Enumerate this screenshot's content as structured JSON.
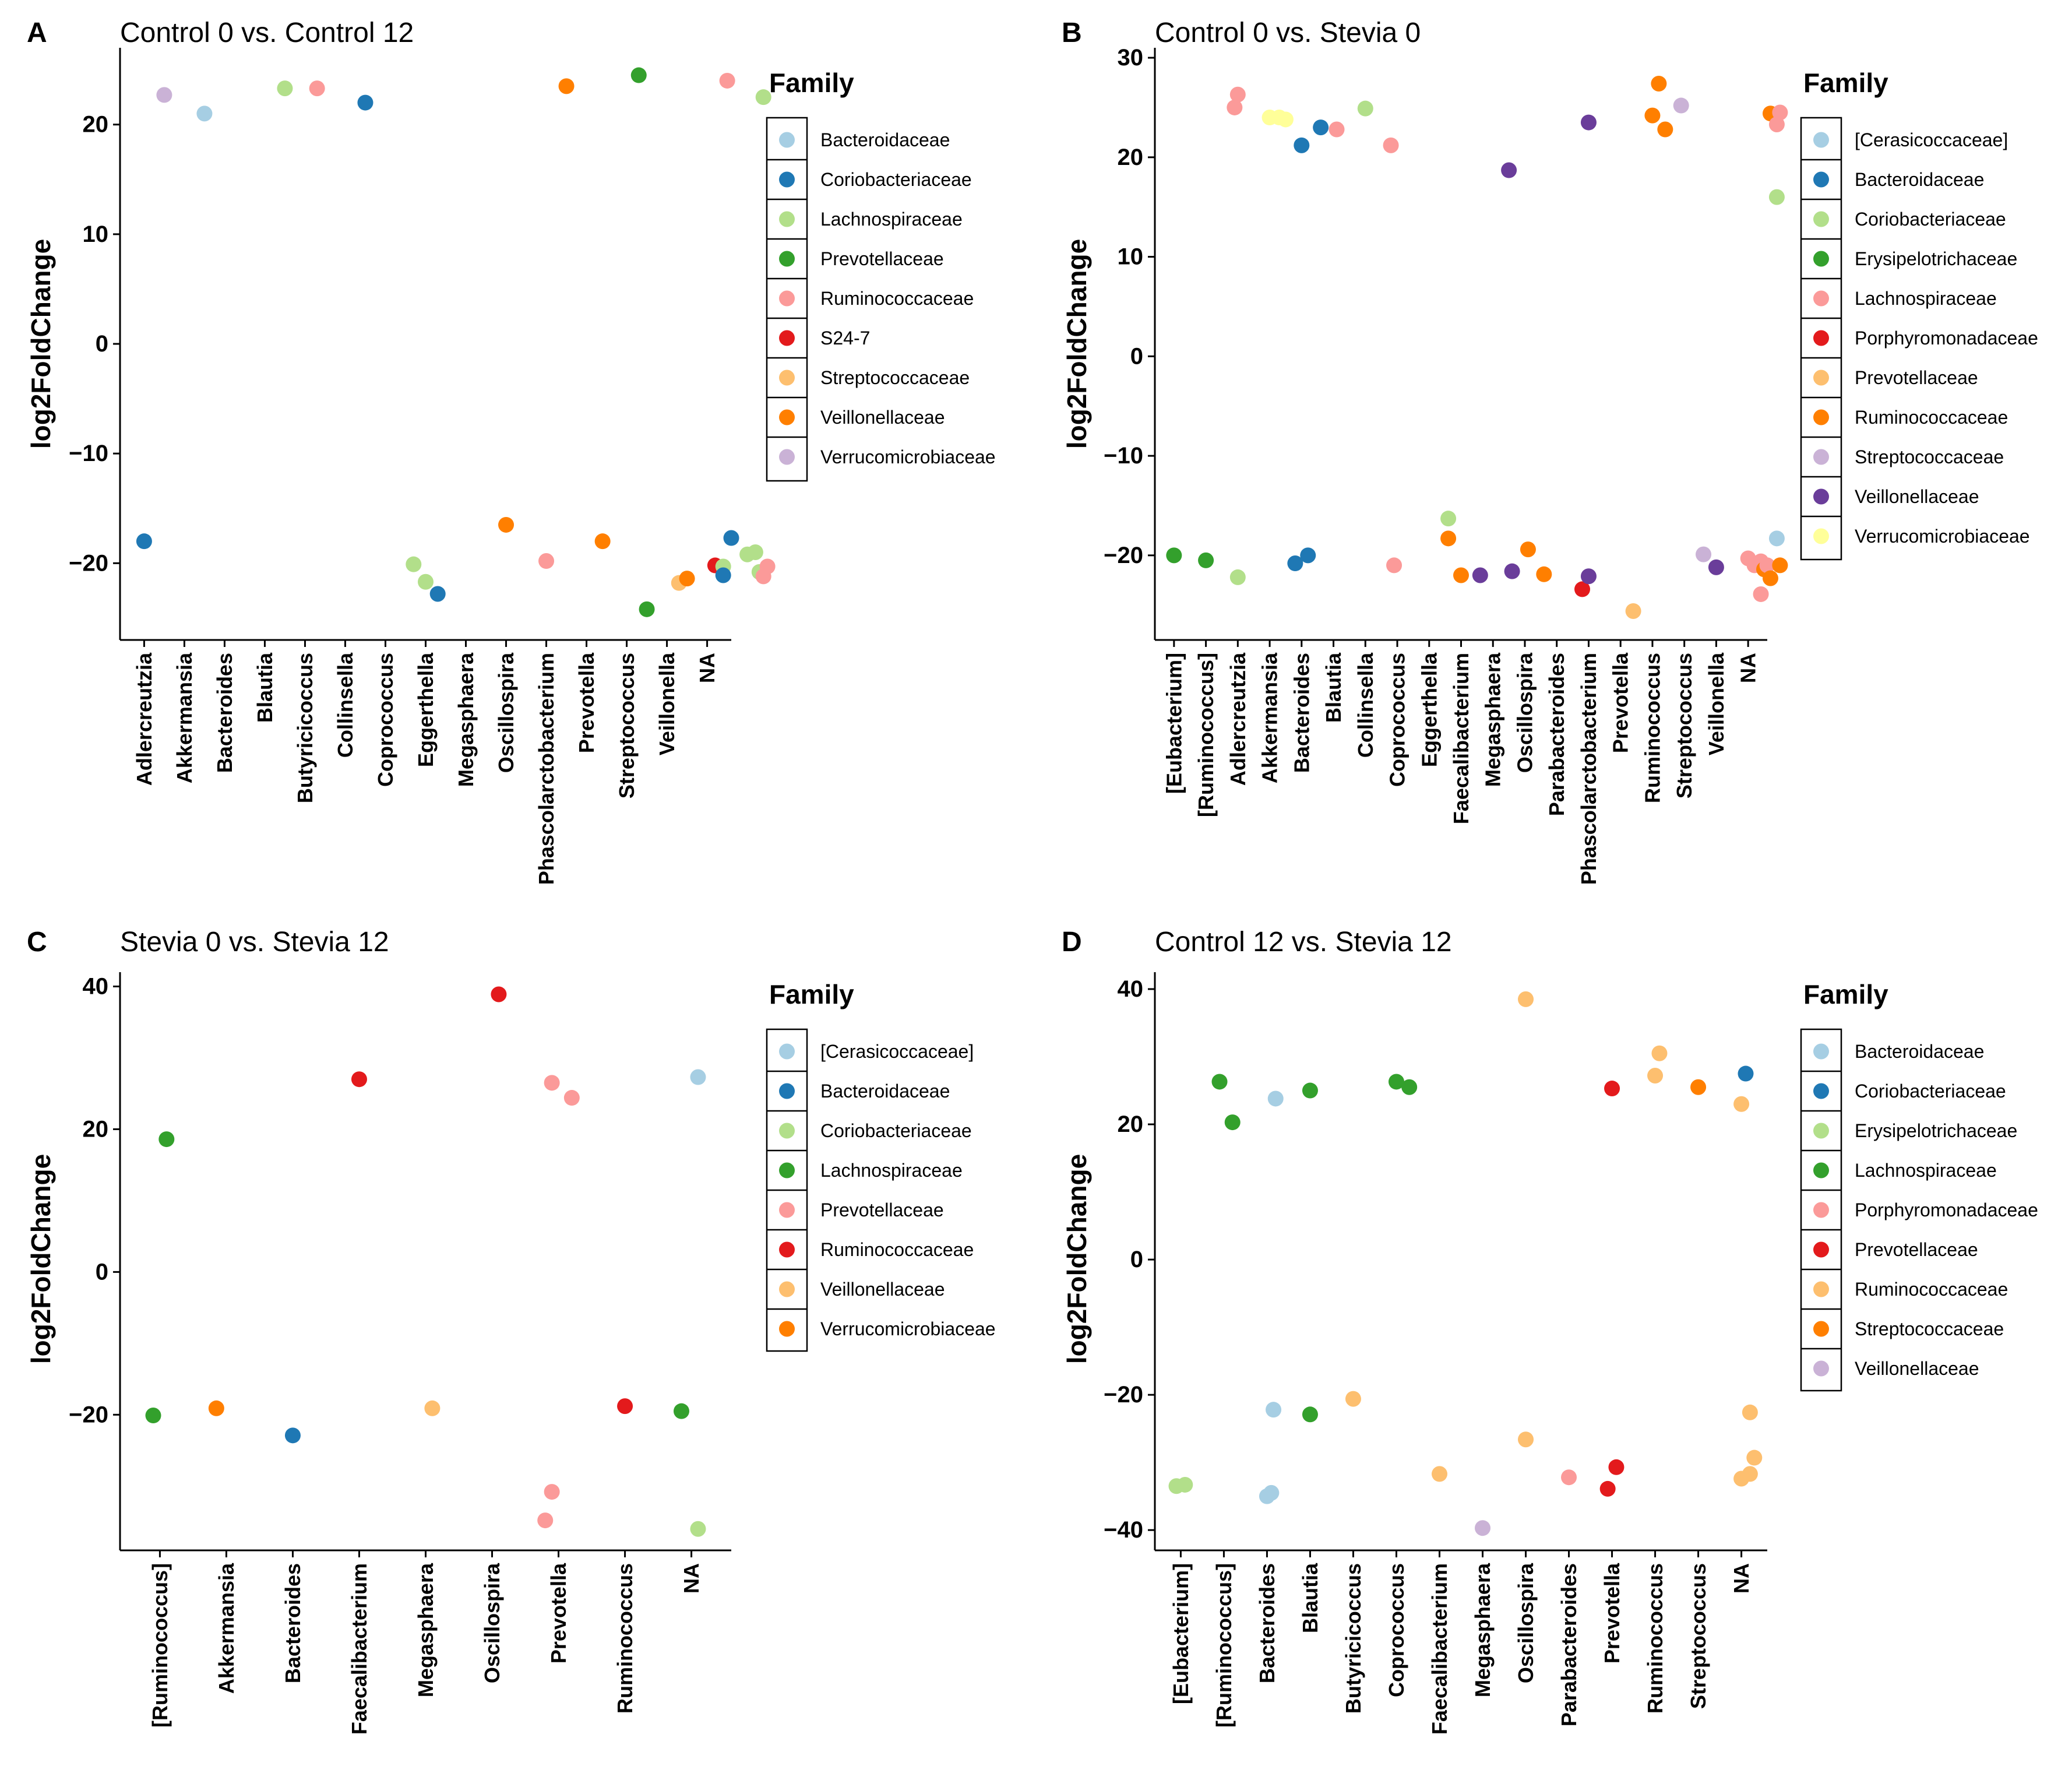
{
  "legend_title": "Family",
  "chart_data": [
    {
      "panel": "A",
      "type": "scatter",
      "title": "Control 0 vs. Control 12",
      "ylabel": "log2FoldChange",
      "xlabel": "",
      "ylim": [
        -27,
        27
      ],
      "yticks": [
        -20,
        -10,
        0,
        10,
        20
      ],
      "ytick_labels": [
        "−20",
        "−10",
        "0",
        "10",
        "20"
      ],
      "categories": [
        "Adlercreutzia",
        "Akkermansia",
        "Bacteroides",
        "Blautia",
        "Butyricicoccus",
        "Collinsella",
        "Coprococcus",
        "Eggerthella",
        "Megasphaera",
        "Oscillospira",
        "Phascolarctobacterium",
        "Prevotella",
        "Streptococcus",
        "Veillonella",
        "NA"
      ],
      "families": [
        {
          "name": "Bacteroidaceae",
          "color": "#a6cee3"
        },
        {
          "name": "Coriobacteriaceae",
          "color": "#1f78b4"
        },
        {
          "name": "Lachnospiraceae",
          "color": "#b2df8a"
        },
        {
          "name": "Prevotellaceae",
          "color": "#33a02c"
        },
        {
          "name": "Ruminococcaceae",
          "color": "#fb9a99"
        },
        {
          "name": "S24-7",
          "color": "#e31a1c"
        },
        {
          "name": "Streptococcaceae",
          "color": "#fdbf6f"
        },
        {
          "name": "Veillonellaceae",
          "color": "#ff7f00"
        },
        {
          "name": "Verrucomicrobiaceae",
          "color": "#cab2d6"
        }
      ],
      "points": [
        {
          "x": 0.5,
          "y": 22.7,
          "family": 8
        },
        {
          "x": 1.5,
          "y": 21.0,
          "family": 0
        },
        {
          "x": 3.5,
          "y": 23.3,
          "family": 2
        },
        {
          "x": 4.3,
          "y": 23.3,
          "family": 4
        },
        {
          "x": 5.5,
          "y": 22.0,
          "family": 1
        },
        {
          "x": 10.5,
          "y": 23.5,
          "family": 7
        },
        {
          "x": 12.3,
          "y": 24.5,
          "family": 3
        },
        {
          "x": 14.5,
          "y": 24.0,
          "family": 4
        },
        {
          "x": 15.4,
          "y": 22.5,
          "family": 2
        },
        {
          "x": 0,
          "y": -18.0,
          "family": 1
        },
        {
          "x": 6.7,
          "y": -20.1,
          "family": 2
        },
        {
          "x": 7.0,
          "y": -21.7,
          "family": 2
        },
        {
          "x": 7.3,
          "y": -22.8,
          "family": 1
        },
        {
          "x": 9.0,
          "y": -16.5,
          "family": 7
        },
        {
          "x": 10.0,
          "y": -19.8,
          "family": 4
        },
        {
          "x": 11.4,
          "y": -18.0,
          "family": 7
        },
        {
          "x": 12.5,
          "y": -24.2,
          "family": 3
        },
        {
          "x": 13.3,
          "y": -21.8,
          "family": 6
        },
        {
          "x": 13.5,
          "y": -21.4,
          "family": 7
        },
        {
          "x": 14.2,
          "y": -20.2,
          "family": 5
        },
        {
          "x": 14.4,
          "y": -20.3,
          "family": 2
        },
        {
          "x": 14.4,
          "y": -21.1,
          "family": 1
        },
        {
          "x": 14.6,
          "y": -17.7,
          "family": 1
        },
        {
          "x": 15.0,
          "y": -19.2,
          "family": 2
        },
        {
          "x": 15.2,
          "y": -19.0,
          "family": 2
        },
        {
          "x": 15.3,
          "y": -20.8,
          "family": 2
        },
        {
          "x": 15.5,
          "y": -20.3,
          "family": 4
        },
        {
          "x": 15.4,
          "y": -21.2,
          "family": 4
        }
      ]
    },
    {
      "panel": "B",
      "type": "scatter",
      "title": "Control 0 vs. Stevia 0",
      "ylabel": "log2FoldChange",
      "xlabel": "",
      "ylim": [
        -28.5,
        31
      ],
      "yticks": [
        -20,
        -10,
        0,
        10,
        20,
        30
      ],
      "ytick_labels": [
        "−20",
        "−10",
        "0",
        "10",
        "20",
        "30"
      ],
      "categories": [
        "[Eubacterium]",
        "[Ruminococcus]",
        "Adlercreutzia",
        "Akkermansia",
        "Bacteroides",
        "Blautia",
        "Collinsella",
        "Coprococcus",
        "Eggerthella",
        "Faecalibacterium",
        "Megasphaera",
        "Oscillospira",
        "Parabacteroides",
        "Phascolarctobacterium",
        "Prevotella",
        "Ruminococcus",
        "Streptococcus",
        "Veillonella",
        "NA"
      ],
      "families": [
        {
          "name": "[Cerasicoccaceae]",
          "color": "#a6cee3"
        },
        {
          "name": "Bacteroidaceae",
          "color": "#1f78b4"
        },
        {
          "name": "Coriobacteriaceae",
          "color": "#b2df8a"
        },
        {
          "name": "Erysipelotrichaceae",
          "color": "#33a02c"
        },
        {
          "name": "Lachnospiraceae",
          "color": "#fb9a99"
        },
        {
          "name": "Porphyromonadaceae",
          "color": "#e31a1c"
        },
        {
          "name": "Prevotellaceae",
          "color": "#fdbf6f"
        },
        {
          "name": "Ruminococcaceae",
          "color": "#ff7f00"
        },
        {
          "name": "Streptococcaceae",
          "color": "#cab2d6"
        },
        {
          "name": "Veillonellaceae",
          "color": "#6a3d9a"
        },
        {
          "name": "Verrucomicrobiaceae",
          "color": "#ffff99"
        }
      ],
      "points": [
        {
          "x": 1.9,
          "y": 25.0,
          "family": 4
        },
        {
          "x": 2.0,
          "y": 26.3,
          "family": 4
        },
        {
          "x": 3.0,
          "y": 24.0,
          "family": 10
        },
        {
          "x": 3.3,
          "y": 24.0,
          "family": 10
        },
        {
          "x": 3.5,
          "y": 23.8,
          "family": 10
        },
        {
          "x": 4.0,
          "y": 21.2,
          "family": 1
        },
        {
          "x": 4.6,
          "y": 23.0,
          "family": 1
        },
        {
          "x": 5.1,
          "y": 22.8,
          "family": 4
        },
        {
          "x": 6.0,
          "y": 24.9,
          "family": 2
        },
        {
          "x": 6.8,
          "y": 21.2,
          "family": 4
        },
        {
          "x": 10.5,
          "y": 18.7,
          "family": 9
        },
        {
          "x": 13.0,
          "y": 23.5,
          "family": 9
        },
        {
          "x": 15.0,
          "y": 24.2,
          "family": 7
        },
        {
          "x": 15.2,
          "y": 27.4,
          "family": 7
        },
        {
          "x": 15.4,
          "y": 22.8,
          "family": 7
        },
        {
          "x": 15.9,
          "y": 25.2,
          "family": 8
        },
        {
          "x": 18.7,
          "y": 24.4,
          "family": 7
        },
        {
          "x": 18.9,
          "y": 23.3,
          "family": 4
        },
        {
          "x": 19.0,
          "y": 24.5,
          "family": 4
        },
        {
          "x": 18.9,
          "y": 16.0,
          "family": 2
        },
        {
          "x": 0.0,
          "y": -20.0,
          "family": 3
        },
        {
          "x": 1.0,
          "y": -20.5,
          "family": 3
        },
        {
          "x": 2.0,
          "y": -22.2,
          "family": 2
        },
        {
          "x": 3.8,
          "y": -20.8,
          "family": 1
        },
        {
          "x": 4.2,
          "y": -20.0,
          "family": 1
        },
        {
          "x": 6.9,
          "y": -21.0,
          "family": 4
        },
        {
          "x": 8.6,
          "y": -16.3,
          "family": 2
        },
        {
          "x": 8.6,
          "y": -18.3,
          "family": 7
        },
        {
          "x": 9.0,
          "y": -22.0,
          "family": 7
        },
        {
          "x": 9.6,
          "y": -22.0,
          "family": 9
        },
        {
          "x": 10.6,
          "y": -21.6,
          "family": 9
        },
        {
          "x": 11.1,
          "y": -19.4,
          "family": 7
        },
        {
          "x": 11.6,
          "y": -21.9,
          "family": 7
        },
        {
          "x": 12.8,
          "y": -23.4,
          "family": 5
        },
        {
          "x": 13.0,
          "y": -22.1,
          "family": 9
        },
        {
          "x": 14.4,
          "y": -25.6,
          "family": 6
        },
        {
          "x": 16.6,
          "y": -19.9,
          "family": 8
        },
        {
          "x": 17.0,
          "y": -21.2,
          "family": 9
        },
        {
          "x": 18.0,
          "y": -20.3,
          "family": 4
        },
        {
          "x": 18.2,
          "y": -21.0,
          "family": 4
        },
        {
          "x": 18.4,
          "y": -20.6,
          "family": 4
        },
        {
          "x": 18.5,
          "y": -21.4,
          "family": 7
        },
        {
          "x": 18.6,
          "y": -21.0,
          "family": 4
        },
        {
          "x": 18.7,
          "y": -22.3,
          "family": 7
        },
        {
          "x": 18.4,
          "y": -23.9,
          "family": 4
        },
        {
          "x": 18.9,
          "y": -18.3,
          "family": 0
        },
        {
          "x": 19.0,
          "y": -21.0,
          "family": 7
        }
      ]
    },
    {
      "panel": "C",
      "type": "scatter",
      "title": "Stevia 0 vs. Stevia 12",
      "ylabel": "log2FoldChange",
      "xlabel": "",
      "ylim": [
        -39,
        42
      ],
      "yticks": [
        -20,
        0,
        20,
        40
      ],
      "ytick_labels": [
        "−20",
        "0",
        "20",
        "40"
      ],
      "categories": [
        "[Ruminococcus]",
        "Akkermansia",
        "Bacteroides",
        "Faecalibacterium",
        "Megasphaera",
        "Oscillospira",
        "Prevotella",
        "Ruminococcus",
        "NA"
      ],
      "families": [
        {
          "name": "[Cerasicoccaceae]",
          "color": "#a6cee3"
        },
        {
          "name": "Bacteroidaceae",
          "color": "#1f78b4"
        },
        {
          "name": "Coriobacteriaceae",
          "color": "#b2df8a"
        },
        {
          "name": "Lachnospiraceae",
          "color": "#33a02c"
        },
        {
          "name": "Prevotellaceae",
          "color": "#fb9a99"
        },
        {
          "name": "Ruminococcaceae",
          "color": "#e31a1c"
        },
        {
          "name": "Veillonellaceae",
          "color": "#fdbf6f"
        },
        {
          "name": "Verrucomicrobiaceae",
          "color": "#ff7f00"
        }
      ],
      "points": [
        {
          "x": 0.1,
          "y": 18.6,
          "family": 3
        },
        {
          "x": 3.0,
          "y": 27.0,
          "family": 5
        },
        {
          "x": 5.1,
          "y": 38.9,
          "family": 5
        },
        {
          "x": 5.9,
          "y": 26.5,
          "family": 4
        },
        {
          "x": 6.2,
          "y": 24.4,
          "family": 4
        },
        {
          "x": 8.1,
          "y": 27.3,
          "family": 0
        },
        {
          "x": -0.1,
          "y": -20.1,
          "family": 3
        },
        {
          "x": 0.85,
          "y": -19.1,
          "family": 7
        },
        {
          "x": 2.0,
          "y": -22.9,
          "family": 1
        },
        {
          "x": 4.1,
          "y": -19.1,
          "family": 6
        },
        {
          "x": 5.9,
          "y": -30.8,
          "family": 4
        },
        {
          "x": 5.8,
          "y": -34.8,
          "family": 4
        },
        {
          "x": 7.0,
          "y": -18.8,
          "family": 5
        },
        {
          "x": 7.85,
          "y": -19.5,
          "family": 3
        },
        {
          "x": 8.1,
          "y": -36.0,
          "family": 2
        }
      ]
    },
    {
      "panel": "D",
      "type": "scatter",
      "title": "Control 12 vs. Stevia 12",
      "ylabel": "log2FoldChange",
      "xlabel": "",
      "ylim": [
        -43,
        42.5
      ],
      "yticks": [
        -40,
        -20,
        0,
        20,
        40
      ],
      "ytick_labels": [
        "−40",
        "−20",
        "0",
        "20",
        "40"
      ],
      "categories": [
        "[Eubacterium]",
        "[Ruminococcus]",
        "Bacteroides",
        "Blautia",
        "Butyricicoccus",
        "Coprococcus",
        "Faecalibacterium",
        "Megasphaera",
        "Oscillospira",
        "Parabacteroides",
        "Prevotella",
        "Ruminococcus",
        "Streptococcus",
        "NA"
      ],
      "families": [
        {
          "name": "Bacteroidaceae",
          "color": "#a6cee3"
        },
        {
          "name": "Coriobacteriaceae",
          "color": "#1f78b4"
        },
        {
          "name": "Erysipelotrichaceae",
          "color": "#b2df8a"
        },
        {
          "name": "Lachnospiraceae",
          "color": "#33a02c"
        },
        {
          "name": "Porphyromonadaceae",
          "color": "#fb9a99"
        },
        {
          "name": "Prevotellaceae",
          "color": "#e31a1c"
        },
        {
          "name": "Ruminococcaceae",
          "color": "#fdbf6f"
        },
        {
          "name": "Streptococcaceae",
          "color": "#ff7f00"
        },
        {
          "name": "Veillonellaceae",
          "color": "#cab2d6"
        }
      ],
      "points": [
        {
          "x": 0.9,
          "y": 26.3,
          "family": 3
        },
        {
          "x": 1.2,
          "y": 20.3,
          "family": 3
        },
        {
          "x": 2.2,
          "y": 23.8,
          "family": 0
        },
        {
          "x": 3.0,
          "y": 25.0,
          "family": 3
        },
        {
          "x": 5.0,
          "y": 26.3,
          "family": 3
        },
        {
          "x": 5.3,
          "y": 25.5,
          "family": 3
        },
        {
          "x": 8.0,
          "y": 38.5,
          "family": 6
        },
        {
          "x": 10.0,
          "y": 25.3,
          "family": 5
        },
        {
          "x": 11.1,
          "y": 30.5,
          "family": 6
        },
        {
          "x": 11.0,
          "y": 27.2,
          "family": 6
        },
        {
          "x": 12.0,
          "y": 25.5,
          "family": 7
        },
        {
          "x": 13.0,
          "y": 23.0,
          "family": 6
        },
        {
          "x": 13.1,
          "y": 27.5,
          "family": 1
        },
        {
          "x": -0.1,
          "y": -33.5,
          "family": 2
        },
        {
          "x": 0.1,
          "y": -33.3,
          "family": 2
        },
        {
          "x": 2.0,
          "y": -35.0,
          "family": 0
        },
        {
          "x": 2.1,
          "y": -34.5,
          "family": 0
        },
        {
          "x": 2.15,
          "y": -22.2,
          "family": 0
        },
        {
          "x": 3.0,
          "y": -22.9,
          "family": 3
        },
        {
          "x": 4.0,
          "y": -20.6,
          "family": 6
        },
        {
          "x": 6.0,
          "y": -31.7,
          "family": 6
        },
        {
          "x": 7.0,
          "y": -39.7,
          "family": 8
        },
        {
          "x": 8.0,
          "y": -26.6,
          "family": 6
        },
        {
          "x": 9.0,
          "y": -32.2,
          "family": 4
        },
        {
          "x": 9.9,
          "y": -33.9,
          "family": 5
        },
        {
          "x": 10.1,
          "y": -30.7,
          "family": 5
        },
        {
          "x": 13.2,
          "y": -22.6,
          "family": 6
        },
        {
          "x": 13.3,
          "y": -29.3,
          "family": 6
        },
        {
          "x": 13.2,
          "y": -31.7,
          "family": 6
        },
        {
          "x": 13.0,
          "y": -32.4,
          "family": 6
        }
      ]
    }
  ]
}
